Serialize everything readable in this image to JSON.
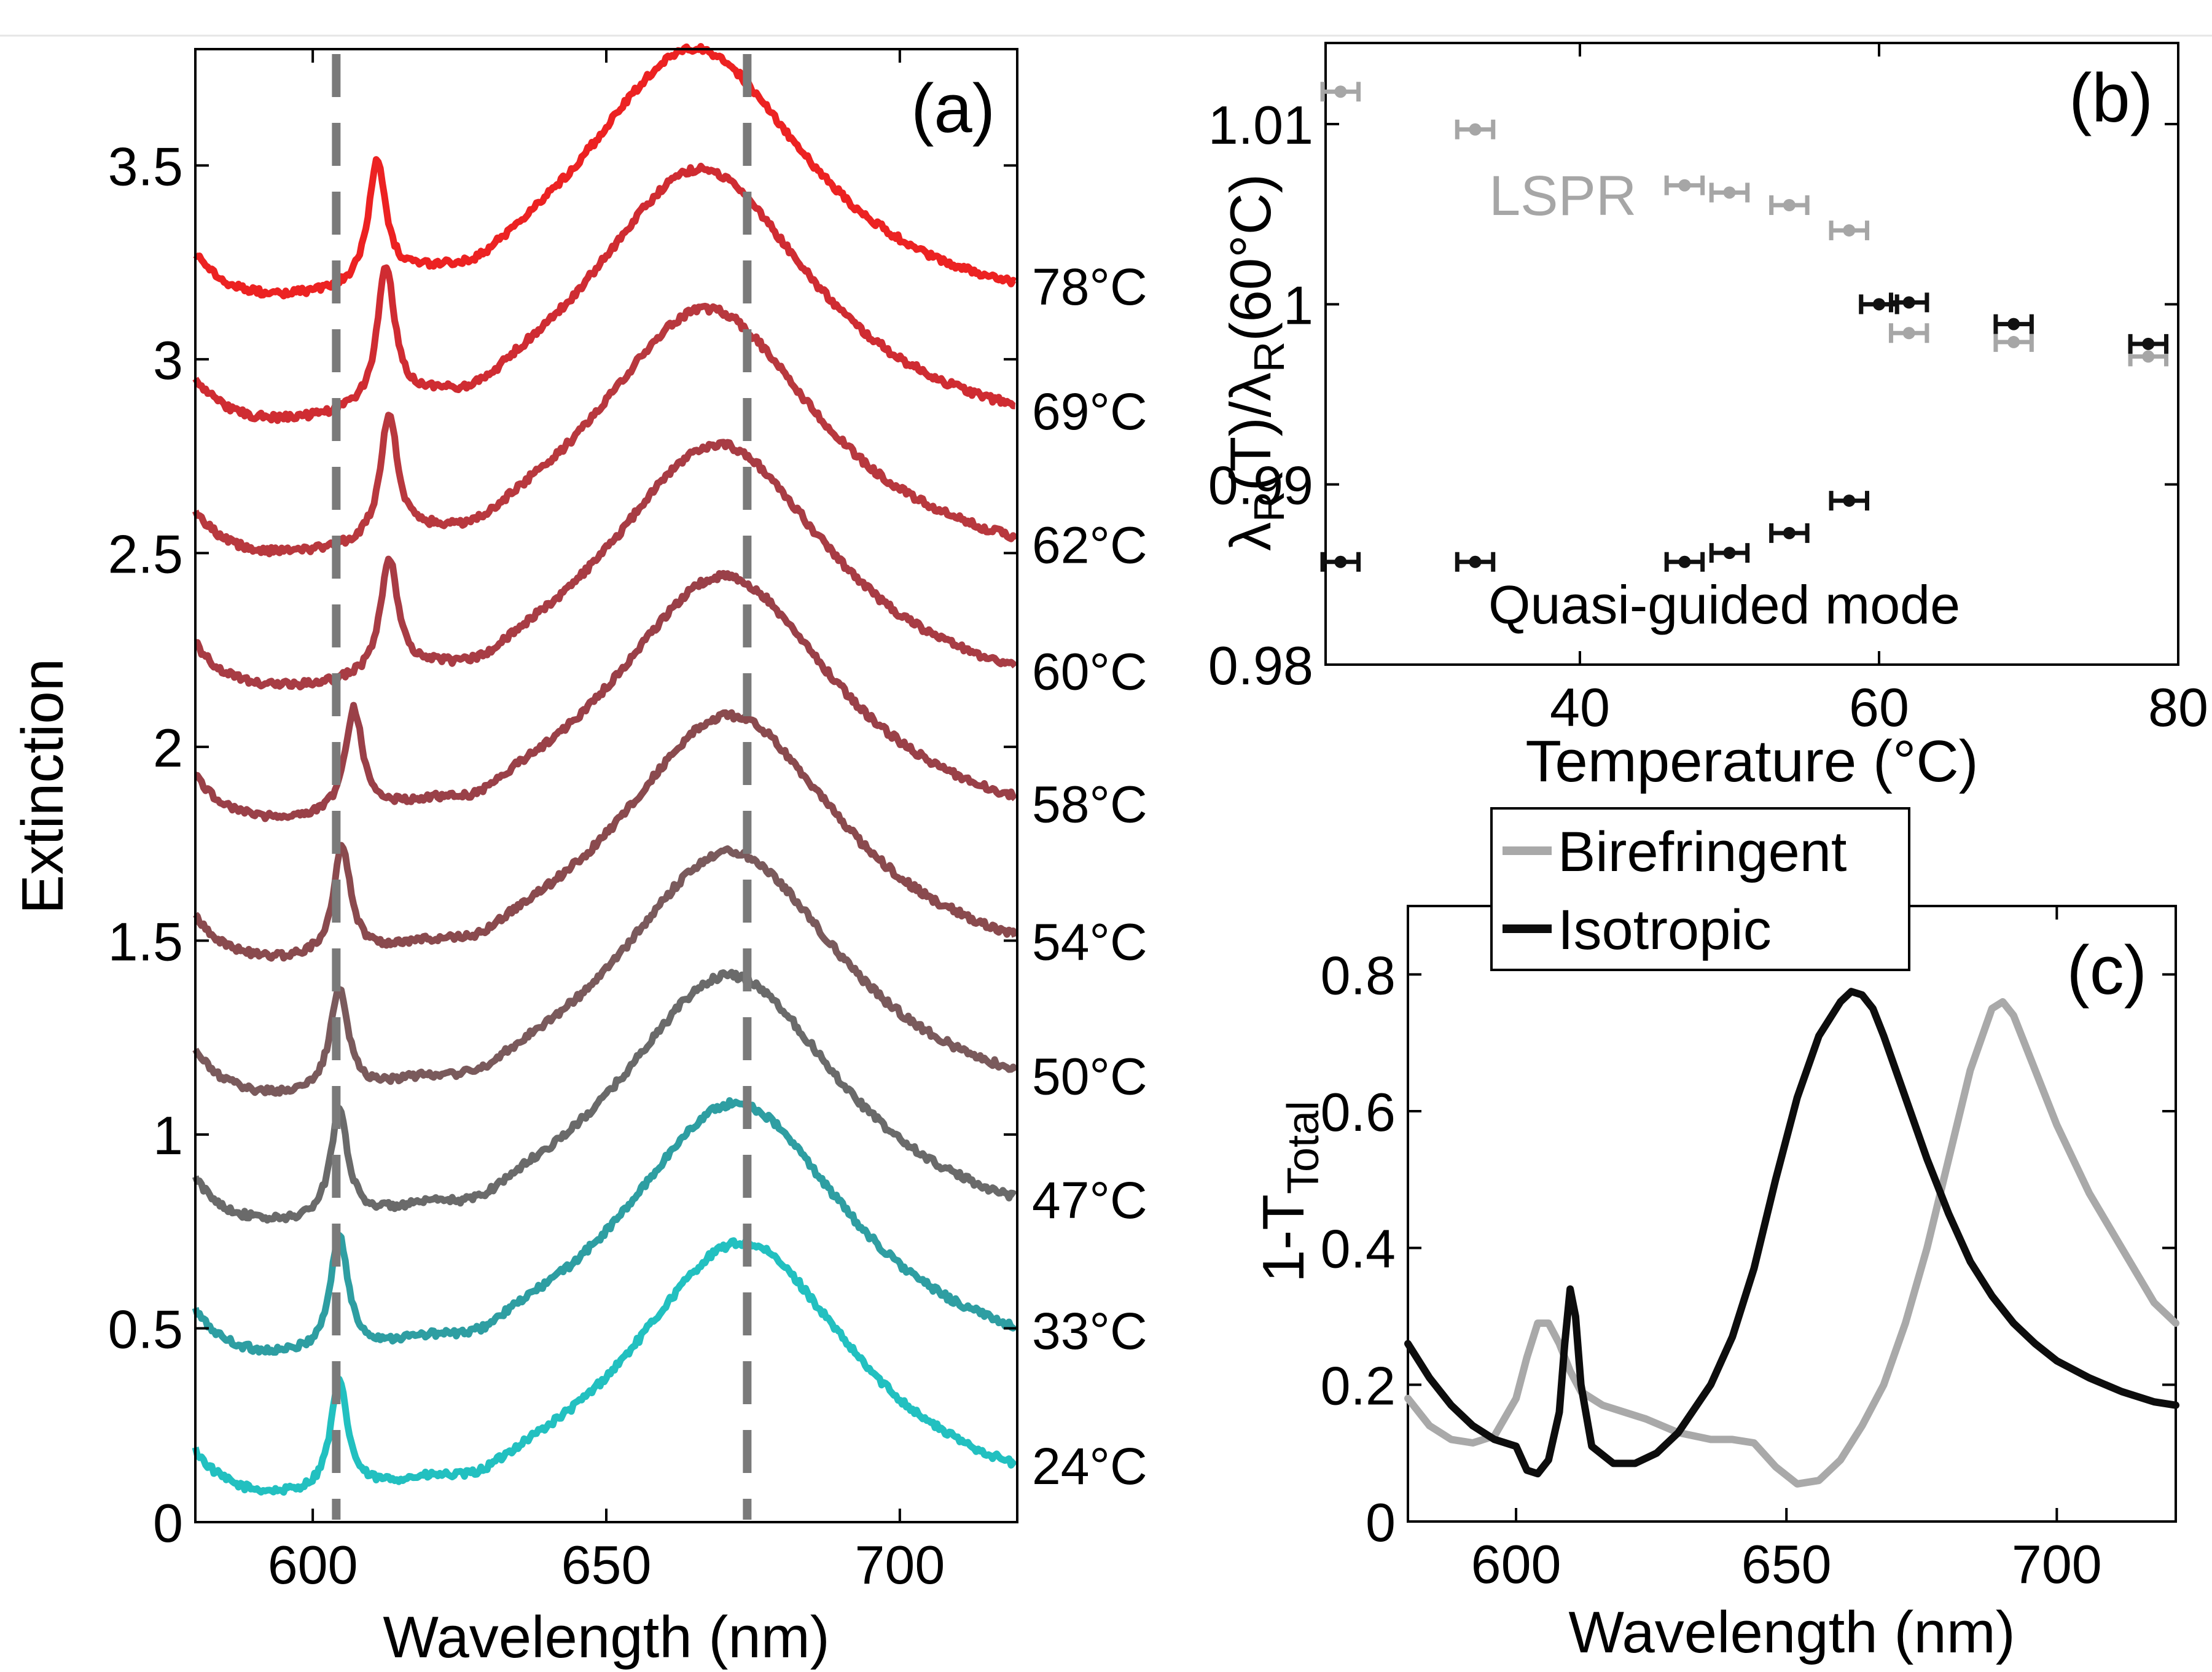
{
  "chart_data": [
    {
      "panel": "(a)",
      "type": "line",
      "title": "",
      "xlabel": "Wavelength (nm)",
      "ylabel": "Extinction",
      "xlim": [
        580,
        720
      ],
      "ylim": [
        0,
        3.8
      ],
      "xticks": [
        600,
        650,
        700
      ],
      "xtick_labels": [
        "600",
        "650",
        "700"
      ],
      "yticks": [
        0,
        0.5,
        1,
        1.5,
        2,
        2.5,
        3,
        3.5
      ],
      "ytick_labels": [
        "0",
        "0.5",
        "1",
        "1.5",
        "2",
        "2.5",
        "3",
        "3.5"
      ],
      "reference_lines_nm": [
        604,
        674
      ],
      "series": [
        {
          "name": "24°C",
          "label": "24°C",
          "color": "#22c0c0",
          "offset": 0.0,
          "peak_guided_nm": 604.5,
          "peak_lspr_nm": 673,
          "guided_height": 0.28,
          "lspr_height": 0.72
        },
        {
          "name": "33°C",
          "label": "33°C",
          "color": "#2e9ea2",
          "offset": 0.36,
          "peak_guided_nm": 604.5,
          "peak_lspr_nm": 672,
          "guided_height": 0.3,
          "lspr_height": 0.72
        },
        {
          "name": "47°C",
          "label": "47°C",
          "color": "#6a6a6a",
          "offset": 0.7,
          "peak_guided_nm": 604.5,
          "peak_lspr_nm": 671,
          "guided_height": 0.28,
          "lspr_height": 0.71
        },
        {
          "name": "50°C",
          "label": "50°C",
          "color": "#7a5a5c",
          "offset": 1.03,
          "peak_guided_nm": 604.5,
          "peak_lspr_nm": 671,
          "guided_height": 0.27,
          "lspr_height": 0.7
        },
        {
          "name": "54°C",
          "label": "54°C",
          "color": "#8a4a4e",
          "offset": 1.38,
          "peak_guided_nm": 605,
          "peak_lspr_nm": 671,
          "guided_height": 0.28,
          "lspr_height": 0.7
        },
        {
          "name": "58°C",
          "label": "58°C",
          "color": "#9a4048",
          "offset": 1.74,
          "peak_guided_nm": 607,
          "peak_lspr_nm": 670,
          "guided_height": 0.27,
          "lspr_height": 0.7
        },
        {
          "name": "60°C",
          "label": "60°C",
          "color": "#a83c44",
          "offset": 2.08,
          "peak_guided_nm": 613,
          "peak_lspr_nm": 669,
          "guided_height": 0.3,
          "lspr_height": 0.7
        },
        {
          "name": "62°C",
          "label": "62°C",
          "color": "#b8383e",
          "offset": 2.42,
          "peak_guided_nm": 613,
          "peak_lspr_nm": 667,
          "guided_height": 0.32,
          "lspr_height": 0.71
        },
        {
          "name": "69°C",
          "label": "69°C",
          "color": "#cf2c32",
          "offset": 2.76,
          "peak_guided_nm": 612.5,
          "peak_lspr_nm": 666,
          "guided_height": 0.36,
          "lspr_height": 0.73
        },
        {
          "name": "78°C",
          "label": "78°C",
          "color": "#ec2222",
          "offset": 3.08,
          "peak_guided_nm": 611,
          "peak_lspr_nm": 665,
          "guided_height": 0.32,
          "lspr_height": 0.72
        }
      ]
    },
    {
      "panel": "(b)",
      "type": "scatter",
      "title": "",
      "xlabel": "Temperature (°C)",
      "ylabel": "λR(T)/λR(60°C)",
      "xlim": [
        23,
        80
      ],
      "ylim": [
        0.98,
        1.0145
      ],
      "xticks": [
        40,
        60,
        80
      ],
      "xtick_labels": [
        "40",
        "60",
        "80"
      ],
      "yticks": [
        0.98,
        0.99,
        1,
        1.01
      ],
      "ytick_labels": [
        "0.98",
        "0.99",
        "1",
        "1.01"
      ],
      "annotations": [
        "LSPR",
        "Quasi-guided mode"
      ],
      "x_error": 1.2,
      "series": [
        {
          "name": "LSPR",
          "color": "#a6a6a6",
          "x": [
            24,
            33,
            47,
            50,
            54,
            58,
            60,
            62,
            69,
            78
          ],
          "y": [
            1.0118,
            1.0097,
            1.0066,
            1.0062,
            1.0055,
            1.0041,
            1.0,
            0.9984,
            0.9979,
            0.9971
          ]
        },
        {
          "name": "Quasi-guided mode",
          "color": "#111111",
          "x": [
            24,
            33,
            47,
            50,
            54,
            58,
            60,
            62,
            69,
            78
          ],
          "y": [
            0.9857,
            0.9857,
            0.9857,
            0.9862,
            0.9873,
            0.9891,
            1.0,
            1.0001,
            0.9989,
            0.9978
          ]
        }
      ]
    },
    {
      "panel": "(c)",
      "type": "line",
      "title": "",
      "xlabel": "Wavelength (nm)",
      "ylabel": "1-T",
      "ylabel_subscript": "Total",
      "xlim": [
        580,
        722
      ],
      "ylim": [
        0,
        0.9
      ],
      "xticks": [
        600,
        650,
        700
      ],
      "xtick_labels": [
        "600",
        "650",
        "700"
      ],
      "yticks": [
        0,
        0.2,
        0.4,
        0.6,
        0.8
      ],
      "ytick_labels": [
        "0",
        "0.2",
        "0.4",
        "0.6",
        "0.8"
      ],
      "legend": {
        "position": "top-left",
        "entries": [
          "Birefringent",
          "Isotropic"
        ]
      },
      "series": [
        {
          "name": "Birefringent",
          "color": "#a9a9a9",
          "x": [
            580,
            584,
            588,
            592,
            596,
            600,
            602,
            604,
            606,
            608,
            610,
            612,
            616,
            620,
            624,
            630,
            636,
            640,
            644,
            648,
            652,
            656,
            660,
            664,
            668,
            672,
            676,
            680,
            684,
            688,
            690,
            692,
            696,
            700,
            706,
            712,
            718,
            722
          ],
          "y": [
            0.18,
            0.14,
            0.12,
            0.115,
            0.125,
            0.18,
            0.24,
            0.29,
            0.29,
            0.26,
            0.22,
            0.19,
            0.17,
            0.16,
            0.15,
            0.13,
            0.12,
            0.12,
            0.115,
            0.08,
            0.055,
            0.06,
            0.09,
            0.14,
            0.2,
            0.29,
            0.4,
            0.53,
            0.66,
            0.75,
            0.76,
            0.74,
            0.66,
            0.58,
            0.48,
            0.4,
            0.32,
            0.29
          ]
        },
        {
          "name": "Isotropic",
          "color": "#0d0d0d",
          "x": [
            580,
            584,
            588,
            592,
            596,
            600,
            602,
            604,
            606,
            608,
            609,
            610,
            611,
            612,
            614,
            618,
            622,
            626,
            630,
            636,
            640,
            644,
            648,
            652,
            656,
            660,
            662,
            664,
            666,
            668,
            672,
            676,
            680,
            684,
            688,
            692,
            696,
            700,
            706,
            712,
            718,
            722
          ],
          "y": [
            0.26,
            0.21,
            0.17,
            0.14,
            0.12,
            0.11,
            0.075,
            0.07,
            0.09,
            0.16,
            0.26,
            0.34,
            0.3,
            0.2,
            0.11,
            0.085,
            0.085,
            0.1,
            0.13,
            0.2,
            0.27,
            0.37,
            0.5,
            0.62,
            0.71,
            0.76,
            0.775,
            0.77,
            0.75,
            0.71,
            0.62,
            0.53,
            0.45,
            0.38,
            0.33,
            0.29,
            0.26,
            0.235,
            0.21,
            0.19,
            0.175,
            0.17
          ]
        }
      ]
    }
  ]
}
